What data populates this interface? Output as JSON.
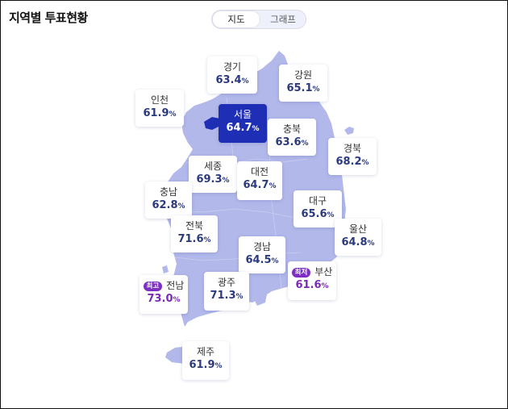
{
  "title": "지역별 투표현황",
  "toggle": {
    "map_label": "지도",
    "graph_label": "그래프",
    "selected": "지도"
  },
  "map_fill": "#b2b8ea",
  "highlight": {
    "region": "서울",
    "fill": "#1f2fb5"
  },
  "badges": {
    "max": "최고",
    "min": "최저"
  },
  "regions": {
    "gyeonggi": {
      "name": "경기",
      "value": "63.4",
      "unit": "%"
    },
    "gangwon": {
      "name": "강원",
      "value": "65.1",
      "unit": "%"
    },
    "incheon": {
      "name": "인천",
      "value": "61.9",
      "unit": "%"
    },
    "seoul": {
      "name": "서울",
      "value": "64.7",
      "unit": "%"
    },
    "chungbuk": {
      "name": "충북",
      "value": "63.6",
      "unit": "%"
    },
    "gyeongbuk": {
      "name": "경북",
      "value": "68.2",
      "unit": "%"
    },
    "sejong": {
      "name": "세종",
      "value": "69.3",
      "unit": "%"
    },
    "daejeon": {
      "name": "대전",
      "value": "64.7",
      "unit": "%"
    },
    "chungnam": {
      "name": "충남",
      "value": "62.8",
      "unit": "%"
    },
    "daegu": {
      "name": "대구",
      "value": "65.6",
      "unit": "%"
    },
    "jeonbuk": {
      "name": "전북",
      "value": "71.6",
      "unit": "%"
    },
    "ulsan": {
      "name": "울산",
      "value": "64.8",
      "unit": "%"
    },
    "gyeongnam": {
      "name": "경남",
      "value": "64.5",
      "unit": "%"
    },
    "busan": {
      "name": "부산",
      "value": "61.6",
      "unit": "%"
    },
    "jeonnam": {
      "name": "전남",
      "value": "73.0",
      "unit": "%"
    },
    "gwangju": {
      "name": "광주",
      "value": "71.3",
      "unit": "%"
    },
    "jeju": {
      "name": "제주",
      "value": "61.9",
      "unit": "%"
    }
  }
}
